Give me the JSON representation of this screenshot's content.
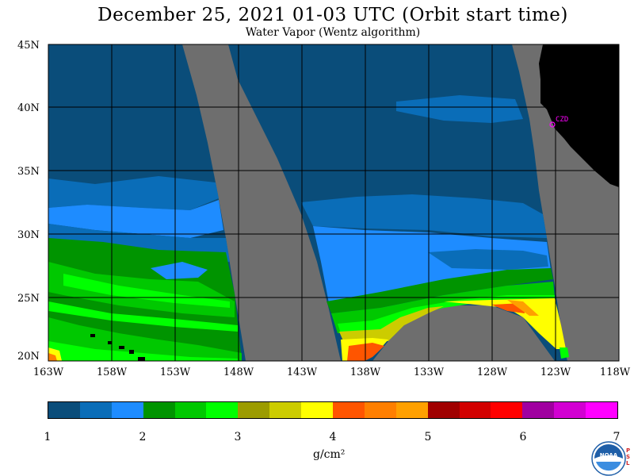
{
  "title": "December 25, 2021  01-03 UTC  (Orbit start time)",
  "subtitle": "Water Vapor (Wentz algorithm)",
  "station_label": "CZD",
  "y_ticks": [
    "45N",
    "40N",
    "35N",
    "30N",
    "25N",
    "20N"
  ],
  "x_ticks": [
    "163W",
    "158W",
    "153W",
    "148W",
    "143W",
    "138W",
    "133W",
    "128W",
    "123W",
    "118W"
  ],
  "colorbar": {
    "labels": [
      "1",
      "2",
      "3",
      "4",
      "5",
      "6",
      "7"
    ],
    "units": "g/cm²",
    "colors": [
      "#0a4d7a",
      "#0a6db8",
      "#1e8cff",
      "#009400",
      "#00c800",
      "#00ff00",
      "#9c9c00",
      "#cccc00",
      "#ffff00",
      "#ff5500",
      "#ff7f00",
      "#ffa000",
      "#a00000",
      "#d20000",
      "#ff0000",
      "#a000a0",
      "#d200d2",
      "#ff00ff"
    ]
  },
  "logo": {
    "text": "NOAA",
    "side_text": "PSL"
  },
  "colors": {
    "missing": "#6e6e6e",
    "land": "#000000",
    "grid": "#000000"
  }
}
